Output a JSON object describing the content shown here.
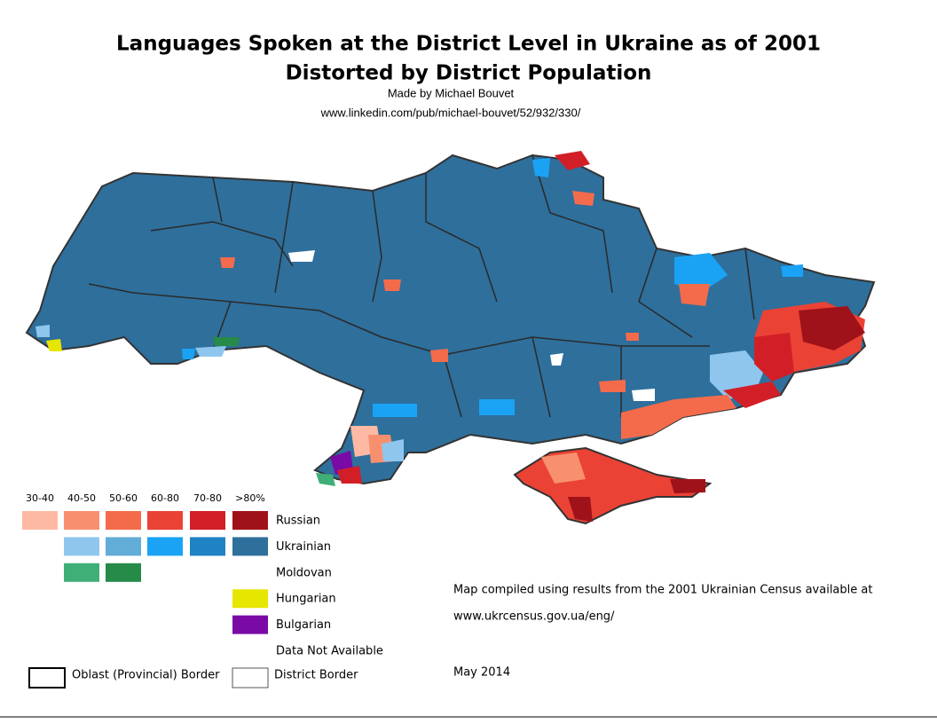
{
  "title": [
    "Languages Spoken at the District Level in Ukraine as of 2001",
    "Distorted by District Population"
  ],
  "credit": "Made by Michael Bouvet",
  "url": "www.linkedin.com/pub/michael-bouvet/52/932/330/",
  "legend": {
    "bins": [
      "30-40",
      "40-50",
      "50-60",
      "60-80",
      "70-80",
      ">80%"
    ],
    "languages": [
      {
        "name": "Russian",
        "colors": [
          "#fdb9a4",
          "#f8906f",
          "#f46b4c",
          "#ea4235",
          "#d21f27",
          "#a01219"
        ]
      },
      {
        "name": "Ukrainian",
        "colors": [
          null,
          "#8fc6ee",
          "#62acd8",
          "#1aa3f5",
          "#1e82c4",
          "#2e6f9c"
        ]
      },
      {
        "name": "Moldovan",
        "colors": [
          null,
          "#3fae77",
          "#268a48",
          null,
          null,
          null
        ]
      },
      {
        "name": "Hungarian",
        "colors": [
          null,
          null,
          null,
          null,
          null,
          "#e6e600"
        ]
      },
      {
        "name": "Bulgarian",
        "colors": [
          null,
          null,
          null,
          null,
          null,
          "#7a0aa6"
        ]
      },
      {
        "name": "Data Not Available",
        "colors": [
          null,
          null,
          null,
          null,
          null,
          "#ffffff"
        ]
      }
    ],
    "borders": [
      "Oblast (Provincial) Border",
      "District Border"
    ]
  },
  "notes": [
    "Map compiled using results from the 2001 Ukrainian Census available at",
    "www.ukrcensus.gov.ua/eng/",
    "May 2014"
  ]
}
